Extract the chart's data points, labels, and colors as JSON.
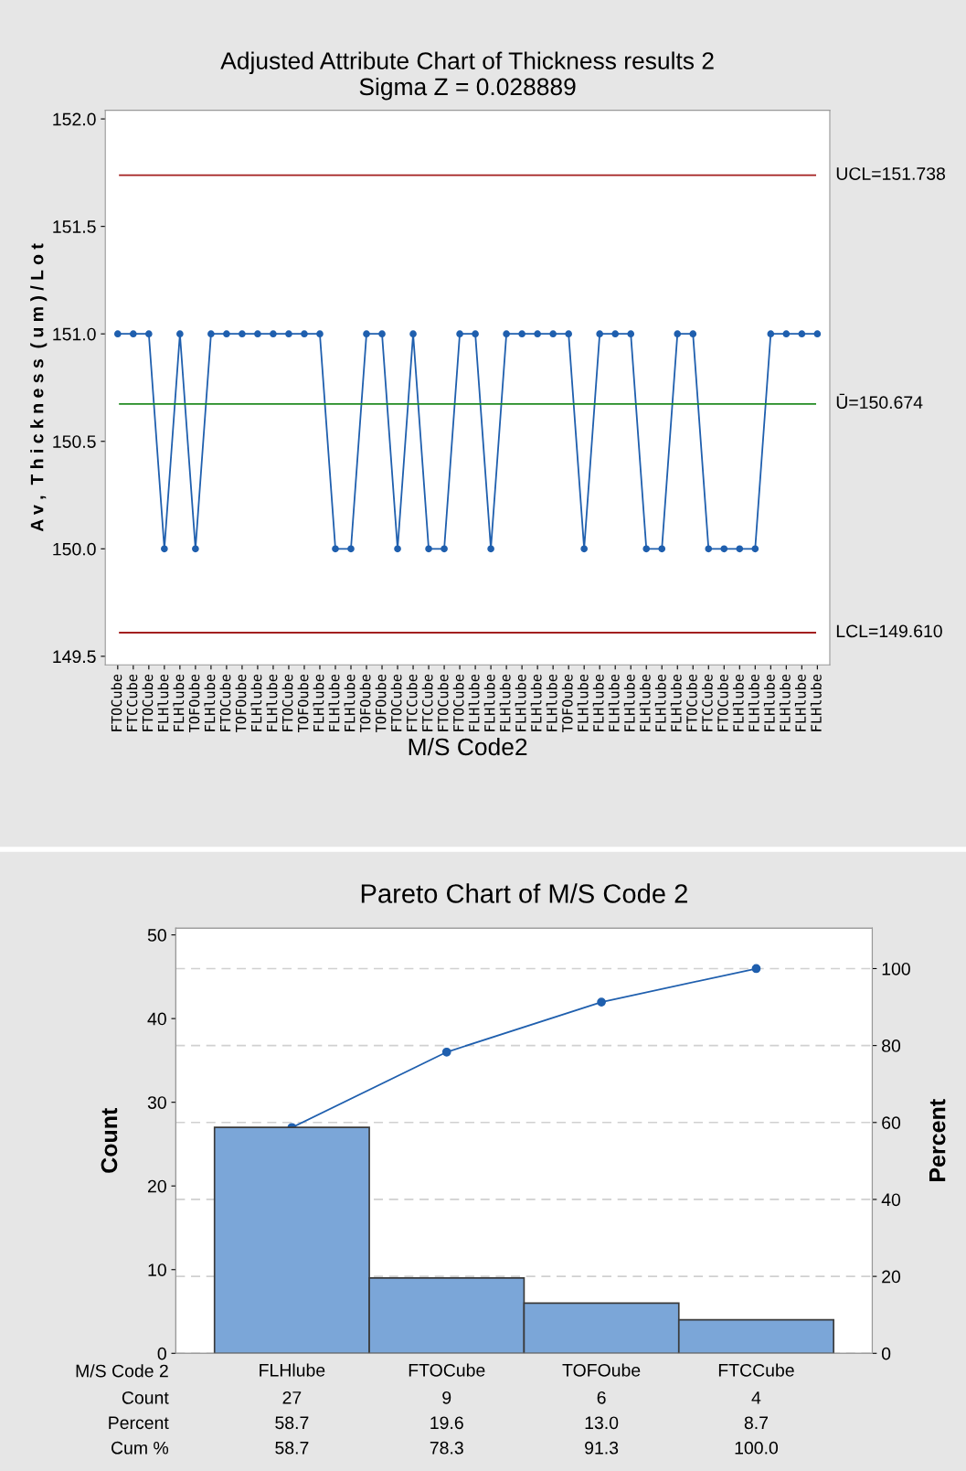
{
  "chart_data": [
    {
      "type": "line",
      "title": "Adjusted Attribute Chart of Thickness results 2",
      "subtitle": "Sigma Z = 0.028889",
      "xlabel": "M/S Code2",
      "ylabel": "A v ,  T h i c k n e s s  ( u m ) / L o t",
      "categories": [
        "FTOCube",
        "FTCCube",
        "FTOCube",
        "FLHlube",
        "FLHlube",
        "TOFOube",
        "FLHlube",
        "FTOCube",
        "TOFOube",
        "FLHlube",
        "FLHlube",
        "FTOCube",
        "TOFOube",
        "FLHlube",
        "FLHlube",
        "FLHlube",
        "TOFOube",
        "TOFOube",
        "FTOCube",
        "FTCCube",
        "FTCCube",
        "FTOCube",
        "FTOCube",
        "FLHlube",
        "FLHlube",
        "FLHlube",
        "FLHlube",
        "FLHlube",
        "FLHlube",
        "TOFOube",
        "FLHlube",
        "FLHlube",
        "FLHlube",
        "FLHlube",
        "FLHlube",
        "FLHlube",
        "FLHlube",
        "FTOCube",
        "FTCCube",
        "FTOCube",
        "FLHlube",
        "FLHlube",
        "FLHlube",
        "FLHlube",
        "FLHlube",
        "FLHlube"
      ],
      "series": [
        {
          "color": "#1f5fae",
          "values": [
            151,
            151,
            151,
            150,
            151,
            150,
            151,
            151,
            151,
            151,
            151,
            151,
            151,
            151,
            150,
            150,
            151,
            151,
            150,
            151,
            150,
            150,
            151,
            151,
            150,
            151,
            151,
            151,
            151,
            151,
            150,
            151,
            151,
            151,
            150,
            150,
            151,
            151,
            150,
            150,
            150,
            150,
            151,
            151,
            151,
            151
          ]
        }
      ],
      "marker": "circle",
      "line_style": "solid",
      "ylim": [
        149.46,
        152.04
      ],
      "yticks": [
        {
          "value": 149.5,
          "label": "149.5"
        },
        {
          "value": 150.0,
          "label": "150.0"
        },
        {
          "value": 150.5,
          "label": "150.5"
        },
        {
          "value": 151.0,
          "label": "151.0"
        },
        {
          "value": 151.5,
          "label": "151.5"
        },
        {
          "value": 152.0,
          "label": "152.0"
        }
      ],
      "ref_lines": [
        {
          "axis": "y",
          "value": 151.738,
          "label": "UCL=151.738",
          "color": "#a31f1f"
        },
        {
          "axis": "y",
          "value": 150.674,
          "label": "Ū=150.674",
          "color": "#228b22"
        },
        {
          "axis": "y",
          "value": 149.61,
          "label": "LCL=149.610",
          "color": "#a31f1f"
        }
      ],
      "grid": false,
      "legend": false
    },
    {
      "type": "bar",
      "title": "Pareto Chart of M/S Code 2",
      "xlabel": "M/S Code 2",
      "ylabel": "Count",
      "y2label": "Percent",
      "categories": [
        "FLHlube",
        "FTOCube",
        "TOFOube",
        "FTCCube"
      ],
      "series": [
        {
          "type": "bar",
          "color": "#7ba6d8",
          "values": [
            27,
            9,
            6,
            4
          ],
          "value_labels": [
            "27",
            "9",
            "6",
            "4"
          ]
        },
        {
          "type": "line",
          "axis": "y2",
          "color": "#1f5fae",
          "values": [
            58.7,
            78.3,
            91.3,
            100.0
          ],
          "value_labels": [
            "58.7",
            "78.3",
            "91.3",
            "100.0"
          ]
        }
      ],
      "annotations": [
        "Count",
        "Percent",
        "Cum %",
        "58.7",
        "19.6",
        "13.0",
        "8.7"
      ],
      "marker": "circle",
      "data_labels": true,
      "ylim": [
        0,
        50.8
      ],
      "yticks": [
        0,
        10,
        20,
        30,
        40,
        50
      ],
      "y2lim": [
        0,
        110.5
      ],
      "y2ticks": [
        0,
        20,
        40,
        60,
        80,
        100
      ],
      "grid": true,
      "legend": false
    }
  ]
}
